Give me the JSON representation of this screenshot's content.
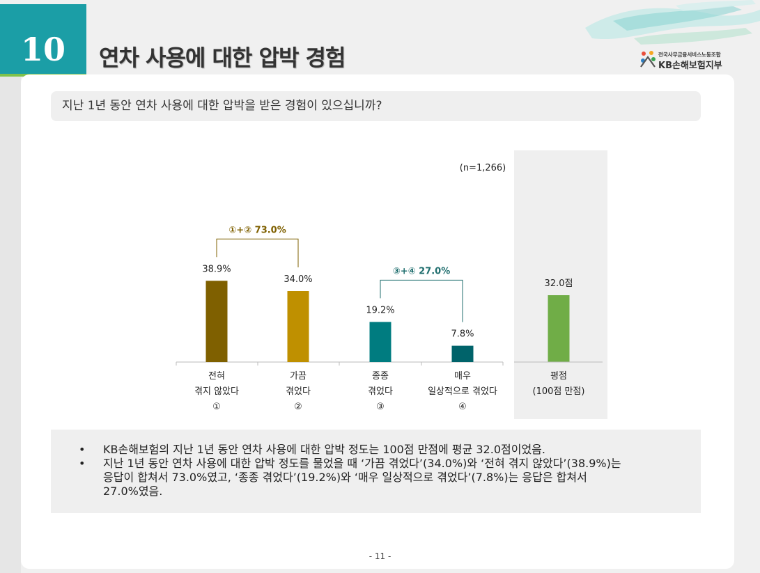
{
  "slide": {
    "number": "10",
    "title": "연차 사용에 대한 압박 경험",
    "page_number": "- 11 -"
  },
  "logo": {
    "line1": "전국사무금융서비스노동조합",
    "line2": "KB손해보험지부"
  },
  "question": "지난 1년 동안 연차 사용에 대한 압박을 받은 경험이 있으십니까?",
  "chart_data": {
    "type": "bar",
    "n_label": "(n=1,266)",
    "categories": [
      {
        "lines": [
          "전혀",
          "겪지 않았다",
          "①"
        ]
      },
      {
        "lines": [
          "가끔",
          "겪었다",
          "②"
        ]
      },
      {
        "lines": [
          "종종",
          "겪었다",
          "③"
        ]
      },
      {
        "lines": [
          "매우",
          "일상적으로 겪었다",
          "④"
        ]
      }
    ],
    "values": [
      38.9,
      34.0,
      19.2,
      7.8
    ],
    "value_labels": [
      "38.9%",
      "34.0%",
      "19.2%",
      "7.8%"
    ],
    "colors": [
      "#7f6000",
      "#bf9000",
      "#007c80",
      "#00636a"
    ],
    "ylim": [
      0,
      45
    ],
    "groups": [
      {
        "label": "①+② 73.0%",
        "value": 73.0,
        "from": 0,
        "to": 1,
        "color": "#7f6000"
      },
      {
        "label": "③+④ 27.0%",
        "value": 27.0,
        "from": 2,
        "to": 3,
        "color": "#1f6e6e"
      }
    ],
    "average": {
      "value": 32.0,
      "value_label": "32.0점",
      "lines": [
        "평점",
        "(100점 만점)"
      ],
      "color": "#70ad47",
      "scale_max": 100
    }
  },
  "summary": [
    "KB손해보험의 지난 1년 동안 연차 사용에 대한 압박 정도는 100점 만점에 평균 32.0점이었음.",
    "지난 1년 동안 연차 사용에 대한 압박 정도를 물었을 때 ‘가끔 겪었다’(34.0%)와 ‘전혀 겪지 않았다’(38.9%)는|응답이 합쳐서 73.0%였고, ‘종종 겪었다’(19.2%)와 ‘매우 일상적으로 겪었다’(7.8%)는 응답은 합쳐서|27.0%였음."
  ],
  "summary_bullet": "•"
}
